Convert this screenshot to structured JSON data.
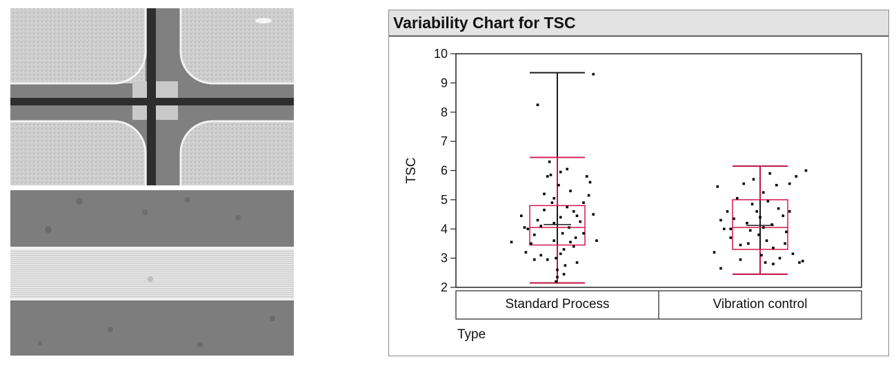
{
  "panel": {
    "title": "Variability Chart for TSC"
  },
  "chart_data": {
    "type": "box",
    "title": "Variability Chart for TSC",
    "ylabel": "TSC",
    "xlabel": "Type",
    "ylim": [
      2,
      10
    ],
    "y_ticks": [
      "2",
      "3",
      "4",
      "5",
      "6",
      "7",
      "8",
      "9",
      "10"
    ],
    "grid": false,
    "categories": [
      "Standard Process",
      "Vibration control"
    ],
    "boxes": [
      {
        "category": "Standard Process",
        "q1": 3.45,
        "median": 4.05,
        "q3": 4.8,
        "lower_whisker": 2.15,
        "upper_whisker": 6.45,
        "min": 2.15,
        "max": 9.35,
        "mean": 4.15
      },
      {
        "category": "Vibration control",
        "q1": 3.3,
        "median": 4.05,
        "q3": 5.0,
        "lower_whisker": 2.45,
        "upper_whisker": 6.15,
        "min": 2.45,
        "max": 6.15,
        "mean": 4.12
      }
    ],
    "colors": {
      "box": "#d6164b",
      "range": "#1a1a1a",
      "points": "#000000"
    },
    "points": [
      [
        [
          -0.7,
          3.55
        ],
        [
          -0.55,
          4.45
        ],
        [
          -0.45,
          4.0
        ],
        [
          -0.48,
          3.2
        ],
        [
          -0.4,
          3.5
        ],
        [
          -0.35,
          2.95
        ],
        [
          -0.3,
          4.3
        ],
        [
          -0.25,
          3.1
        ],
        [
          -0.2,
          5.2
        ],
        [
          -0.2,
          4.65
        ],
        [
          -0.15,
          5.8
        ],
        [
          -0.1,
          5.85
        ],
        [
          -0.08,
          4.9
        ],
        [
          -0.05,
          4.2
        ],
        [
          -0.05,
          3.6
        ],
        [
          -0.02,
          3.0
        ],
        [
          0.0,
          2.6
        ],
        [
          0.0,
          2.35
        ],
        [
          0.02,
          5.5
        ],
        [
          0.05,
          5.95
        ],
        [
          0.05,
          4.4
        ],
        [
          0.08,
          3.85
        ],
        [
          0.1,
          3.3
        ],
        [
          0.12,
          2.75
        ],
        [
          0.15,
          4.75
        ],
        [
          0.18,
          4.05
        ],
        [
          0.2,
          3.55
        ],
        [
          0.2,
          5.3
        ],
        [
          0.25,
          4.6
        ],
        [
          0.28,
          3.7
        ],
        [
          0.3,
          2.85
        ],
        [
          0.35,
          4.25
        ],
        [
          0.4,
          4.9
        ],
        [
          0.45,
          5.8
        ],
        [
          0.5,
          5.6
        ],
        [
          0.55,
          4.5
        ],
        [
          0.6,
          3.6
        ],
        [
          -0.3,
          8.25
        ],
        [
          0.55,
          9.3
        ],
        [
          -0.12,
          6.3
        ],
        [
          0.15,
          6.05
        ],
        [
          -0.25,
          4.1
        ],
        [
          0.3,
          4.45
        ],
        [
          -0.05,
          5.05
        ],
        [
          0.05,
          3.15
        ],
        [
          -0.15,
          2.95
        ],
        [
          0.1,
          2.45
        ],
        [
          -0.02,
          2.2
        ],
        [
          0.25,
          3.4
        ],
        [
          -0.35,
          3.8
        ],
        [
          0.4,
          3.85
        ],
        [
          0.48,
          5.15
        ],
        [
          -0.5,
          4.05
        ]
      ],
      [
        [
          -0.7,
          3.2
        ],
        [
          -0.65,
          5.45
        ],
        [
          -0.6,
          2.65
        ],
        [
          -0.55,
          4.0
        ],
        [
          -0.5,
          4.6
        ],
        [
          -0.45,
          3.7
        ],
        [
          -0.4,
          4.35
        ],
        [
          -0.35,
          5.05
        ],
        [
          -0.3,
          2.95
        ],
        [
          -0.25,
          5.55
        ],
        [
          -0.2,
          4.2
        ],
        [
          -0.18,
          3.5
        ],
        [
          -0.12,
          4.85
        ],
        [
          -0.1,
          5.7
        ],
        [
          -0.05,
          4.6
        ],
        [
          -0.02,
          3.8
        ],
        [
          0.0,
          4.4
        ],
        [
          0.02,
          3.1
        ],
        [
          0.05,
          5.25
        ],
        [
          0.08,
          2.85
        ],
        [
          0.1,
          3.6
        ],
        [
          0.12,
          4.95
        ],
        [
          0.15,
          5.9
        ],
        [
          0.18,
          4.15
        ],
        [
          0.2,
          3.35
        ],
        [
          0.25,
          5.5
        ],
        [
          0.28,
          4.7
        ],
        [
          0.3,
          3.0
        ],
        [
          0.35,
          4.45
        ],
        [
          0.4,
          3.9
        ],
        [
          0.45,
          5.55
        ],
        [
          0.5,
          3.15
        ],
        [
          0.55,
          5.8
        ],
        [
          0.6,
          2.85
        ],
        [
          0.65,
          2.9
        ],
        [
          0.7,
          6.0
        ],
        [
          -0.45,
          4.0
        ],
        [
          -0.3,
          3.45
        ],
        [
          0.05,
          4.05
        ],
        [
          0.2,
          2.8
        ],
        [
          -0.15,
          3.95
        ],
        [
          0.38,
          3.5
        ],
        [
          -0.6,
          4.3
        ],
        [
          0.45,
          4.6
        ]
      ]
    ]
  }
}
